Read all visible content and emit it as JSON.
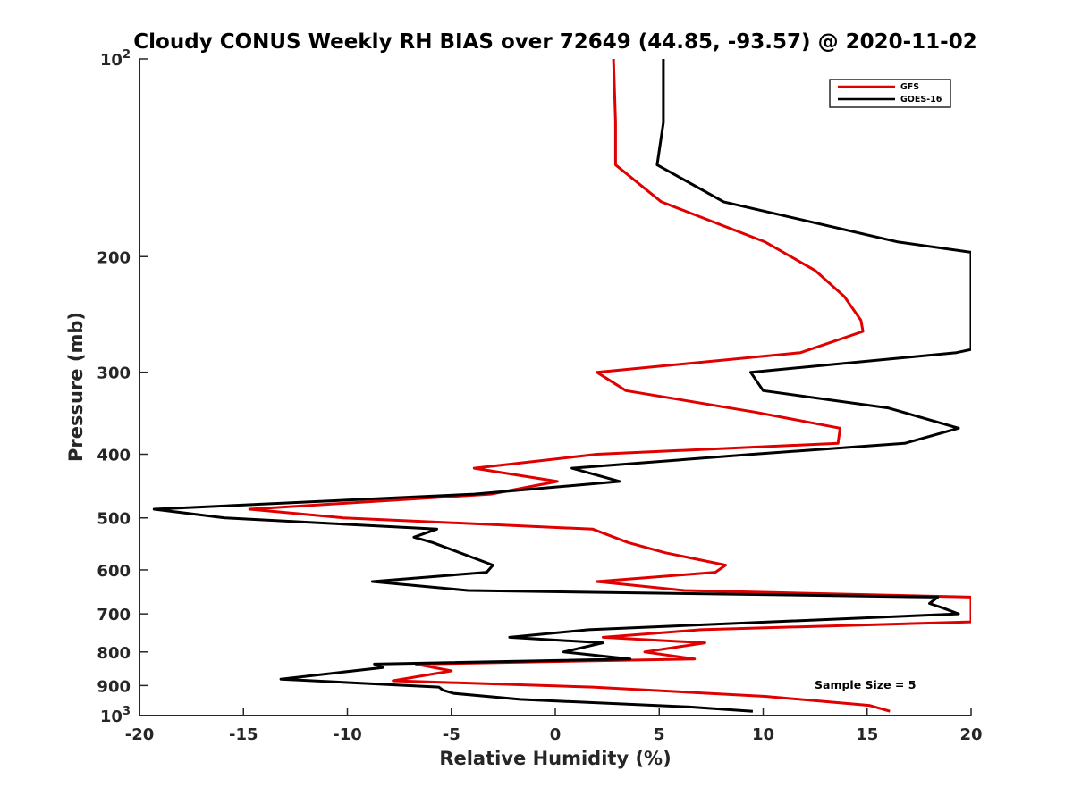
{
  "chart_data": {
    "type": "line",
    "title": "Cloudy CONUS Weekly RH BIAS over 72649 (44.85, -93.57) @ 2020-11-02",
    "xlabel": "Relative Humidity (%)",
    "ylabel": "Pressure (mb)",
    "xlim": [
      -20,
      20
    ],
    "ylim": [
      100,
      1000
    ],
    "yscale": "log",
    "y_reversed": true,
    "grid": false,
    "legend_position": "top-right",
    "x_ticks": [
      {
        "value": -20,
        "label": "-20"
      },
      {
        "value": -15,
        "label": "-15"
      },
      {
        "value": -10,
        "label": "-10"
      },
      {
        "value": -5,
        "label": "-5"
      },
      {
        "value": 0,
        "label": "0"
      },
      {
        "value": 5,
        "label": "5"
      },
      {
        "value": 10,
        "label": "10"
      },
      {
        "value": 15,
        "label": "15"
      },
      {
        "value": 20,
        "label": "20"
      }
    ],
    "y_ticks": [
      {
        "value": 100,
        "base": "10",
        "exp": "2"
      },
      {
        "value": 200,
        "base": "200",
        "exp": ""
      },
      {
        "value": 300,
        "base": "300",
        "exp": ""
      },
      {
        "value": 400,
        "base": "400",
        "exp": ""
      },
      {
        "value": 500,
        "base": "500",
        "exp": ""
      },
      {
        "value": 600,
        "base": "600",
        "exp": ""
      },
      {
        "value": 700,
        "base": "700",
        "exp": ""
      },
      {
        "value": 800,
        "base": "800",
        "exp": ""
      },
      {
        "value": 900,
        "base": "900",
        "exp": ""
      },
      {
        "value": 1000,
        "base": "10",
        "exp": "3"
      }
    ],
    "series": [
      {
        "name": "GFS",
        "color": "#e00000",
        "points": [
          {
            "x": 2.8,
            "y": 100
          },
          {
            "x": 2.9,
            "y": 125
          },
          {
            "x": 2.9,
            "y": 145
          },
          {
            "x": 5.1,
            "y": 165
          },
          {
            "x": 10.1,
            "y": 190
          },
          {
            "x": 12.5,
            "y": 210
          },
          {
            "x": 13.9,
            "y": 230
          },
          {
            "x": 14.7,
            "y": 250
          },
          {
            "x": 14.8,
            "y": 260
          },
          {
            "x": 11.8,
            "y": 280
          },
          {
            "x": 2.0,
            "y": 300
          },
          {
            "x": 3.4,
            "y": 320
          },
          {
            "x": 9.6,
            "y": 345
          },
          {
            "x": 13.7,
            "y": 365
          },
          {
            "x": 13.6,
            "y": 385
          },
          {
            "x": 2.0,
            "y": 400
          },
          {
            "x": -3.9,
            "y": 420
          },
          {
            "x": 0.1,
            "y": 440
          },
          {
            "x": -3.1,
            "y": 460
          },
          {
            "x": -14.7,
            "y": 485
          },
          {
            "x": -10.2,
            "y": 500
          },
          {
            "x": 1.8,
            "y": 520
          },
          {
            "x": 3.5,
            "y": 545
          },
          {
            "x": 5.3,
            "y": 565
          },
          {
            "x": 8.2,
            "y": 590
          },
          {
            "x": 7.7,
            "y": 605
          },
          {
            "x": 2.0,
            "y": 625
          },
          {
            "x": 6.2,
            "y": 645
          },
          {
            "x": 20.0,
            "y": 660
          },
          {
            "x": 20.0,
            "y": 720
          },
          {
            "x": 7.0,
            "y": 740
          },
          {
            "x": 2.3,
            "y": 760
          },
          {
            "x": 7.2,
            "y": 775
          },
          {
            "x": 4.3,
            "y": 800
          },
          {
            "x": 6.7,
            "y": 820
          },
          {
            "x": -6.7,
            "y": 835
          },
          {
            "x": -5.0,
            "y": 855
          },
          {
            "x": -7.8,
            "y": 885
          },
          {
            "x": 1.8,
            "y": 905
          },
          {
            "x": 10.1,
            "y": 935
          },
          {
            "x": 15.1,
            "y": 965
          },
          {
            "x": 16.1,
            "y": 985
          }
        ]
      },
      {
        "name": "GOES-16",
        "color": "#000000",
        "points": [
          {
            "x": 5.2,
            "y": 100
          },
          {
            "x": 5.2,
            "y": 125
          },
          {
            "x": 4.9,
            "y": 145
          },
          {
            "x": 8.1,
            "y": 165
          },
          {
            "x": 16.5,
            "y": 190
          },
          {
            "x": 20.0,
            "y": 197
          },
          {
            "x": 20.0,
            "y": 277
          },
          {
            "x": 19.3,
            "y": 280
          },
          {
            "x": 9.4,
            "y": 300
          },
          {
            "x": 10.0,
            "y": 320
          },
          {
            "x": 16.0,
            "y": 340
          },
          {
            "x": 19.4,
            "y": 365
          },
          {
            "x": 16.8,
            "y": 385
          },
          {
            "x": 9.5,
            "y": 400
          },
          {
            "x": 0.8,
            "y": 420
          },
          {
            "x": 3.1,
            "y": 440
          },
          {
            "x": -3.9,
            "y": 460
          },
          {
            "x": -19.3,
            "y": 485
          },
          {
            "x": -15.9,
            "y": 500
          },
          {
            "x": -5.7,
            "y": 520
          },
          {
            "x": -6.8,
            "y": 535
          },
          {
            "x": -5.9,
            "y": 545
          },
          {
            "x": -3.0,
            "y": 590
          },
          {
            "x": -3.3,
            "y": 605
          },
          {
            "x": -8.8,
            "y": 625
          },
          {
            "x": -4.2,
            "y": 645
          },
          {
            "x": 18.4,
            "y": 660
          },
          {
            "x": 18.0,
            "y": 675
          },
          {
            "x": 18.6,
            "y": 685
          },
          {
            "x": 19.4,
            "y": 700
          },
          {
            "x": 1.6,
            "y": 740
          },
          {
            "x": -2.2,
            "y": 760
          },
          {
            "x": 2.3,
            "y": 775
          },
          {
            "x": 0.4,
            "y": 800
          },
          {
            "x": 3.6,
            "y": 820
          },
          {
            "x": -8.7,
            "y": 835
          },
          {
            "x": -8.3,
            "y": 845
          },
          {
            "x": -13.2,
            "y": 880
          },
          {
            "x": -5.6,
            "y": 905
          },
          {
            "x": -5.4,
            "y": 915
          },
          {
            "x": -4.9,
            "y": 925
          },
          {
            "x": -1.7,
            "y": 945
          },
          {
            "x": 6.4,
            "y": 970
          },
          {
            "x": 9.5,
            "y": 985
          }
        ]
      }
    ],
    "annotations": [
      {
        "text": "Sample Size = 5"
      }
    ]
  }
}
